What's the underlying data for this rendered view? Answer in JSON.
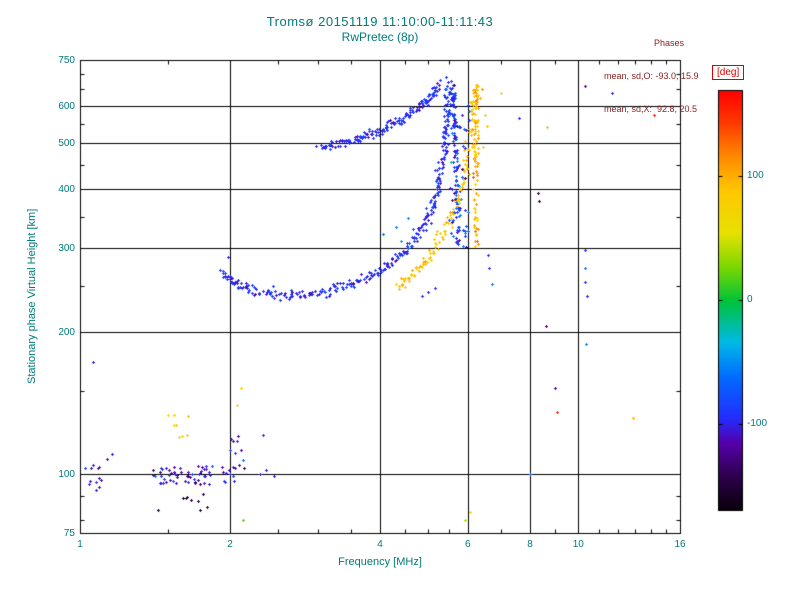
{
  "colors": {
    "axis_text": "#007a7a",
    "stats_text": "#8b2222",
    "colorbar_label": "#dd0000",
    "grid": "#000000",
    "background": "#ffffff"
  },
  "chart_data": {
    "type": "scatter",
    "title": "Tromsø 20151119 11:10:00-11:11:43",
    "subtitle": "RwPretec (8p)",
    "xlabel": "Frequency [MHz]",
    "ylabel": "Stationary phase Virtual Height [km]",
    "xscale": "log",
    "yscale": "log",
    "xlim": [
      1,
      16
    ],
    "ylim": [
      75,
      750
    ],
    "xticks": [
      1,
      2,
      4,
      6,
      8,
      10,
      16
    ],
    "yticks": [
      75,
      100,
      200,
      300,
      400,
      500,
      600,
      750
    ],
    "x_minor_ticks": [
      1.5,
      2.5,
      3,
      3.5,
      4.5,
      5,
      5.5,
      7,
      9,
      11,
      12,
      13,
      14,
      15
    ],
    "y_minor_ticks": [
      80,
      90,
      150,
      250,
      350,
      450,
      550,
      650,
      700
    ],
    "grid": true,
    "stats": {
      "header": "Phases",
      "o_line": "mean, sd,O: -93.0, 15.9",
      "x_line": "mean, sd,X:  92.8, 20.5"
    },
    "colorbar": {
      "label": "[deg]",
      "ticks": [
        100,
        0,
        -100
      ],
      "vmin": -170,
      "vmax": 170
    },
    "colormap_stops": [
      [
        0.0,
        10,
        0,
        10
      ],
      [
        0.08,
        45,
        0,
        75
      ],
      [
        0.16,
        85,
        0,
        170
      ],
      [
        0.22,
        35,
        45,
        255
      ],
      [
        0.32,
        0,
        110,
        255
      ],
      [
        0.4,
        0,
        185,
        230
      ],
      [
        0.5,
        0,
        195,
        55
      ],
      [
        0.58,
        125,
        215,
        0
      ],
      [
        0.66,
        230,
        225,
        0
      ],
      [
        0.76,
        255,
        200,
        0
      ],
      [
        0.84,
        255,
        140,
        0
      ],
      [
        0.92,
        255,
        60,
        0
      ],
      [
        1.0,
        255,
        0,
        0
      ]
    ],
    "traces": [
      {
        "name": "o-mode-lower",
        "phase": -95,
        "phase_sd": 9,
        "n": 320,
        "jitter_logf": 0.004,
        "jitter_logh": 0.005,
        "path": [
          [
            1.93,
            268
          ],
          [
            2.0,
            256
          ],
          [
            2.1,
            249
          ],
          [
            2.25,
            244
          ],
          [
            2.45,
            240
          ],
          [
            2.7,
            239
          ],
          [
            2.95,
            241
          ],
          [
            3.2,
            245
          ],
          [
            3.45,
            251
          ],
          [
            3.7,
            258
          ],
          [
            3.95,
            267
          ],
          [
            4.2,
            279
          ],
          [
            4.45,
            294
          ],
          [
            4.7,
            314
          ],
          [
            4.9,
            337
          ],
          [
            5.05,
            360
          ],
          [
            5.18,
            390
          ],
          [
            5.28,
            425
          ],
          [
            5.36,
            468
          ],
          [
            5.41,
            515
          ],
          [
            5.44,
            562
          ],
          [
            5.46,
            612
          ],
          [
            5.47,
            685
          ]
        ]
      },
      {
        "name": "o-mode-upper",
        "phase": -95,
        "phase_sd": 9,
        "n": 160,
        "jitter_logf": 0.004,
        "jitter_logh": 0.005,
        "path": [
          [
            3.05,
            492
          ],
          [
            3.3,
            500
          ],
          [
            3.6,
            511
          ],
          [
            3.9,
            527
          ],
          [
            4.2,
            547
          ],
          [
            4.5,
            571
          ],
          [
            4.8,
            600
          ],
          [
            5.05,
            630
          ],
          [
            5.25,
            662
          ]
        ]
      },
      {
        "name": "o-mode-second-strand",
        "phase": -92,
        "phase_sd": 15,
        "n": 90,
        "jitter_logf": 0.003,
        "jitter_logh": 0.01,
        "path": [
          [
            5.74,
            305
          ],
          [
            5.71,
            355
          ],
          [
            5.69,
            415
          ],
          [
            5.67,
            485
          ],
          [
            5.64,
            555
          ],
          [
            5.61,
            620
          ],
          [
            5.58,
            658
          ]
        ]
      },
      {
        "name": "x-mode-rise",
        "phase": 88,
        "phase_sd": 12,
        "n": 130,
        "jitter_logf": 0.004,
        "jitter_logh": 0.006,
        "path": [
          [
            4.35,
            250
          ],
          [
            4.6,
            262
          ],
          [
            4.85,
            277
          ],
          [
            5.1,
            297
          ],
          [
            5.35,
            324
          ],
          [
            5.6,
            360
          ],
          [
            5.85,
            408
          ],
          [
            6.0,
            468
          ],
          [
            6.1,
            540
          ],
          [
            6.17,
            608
          ],
          [
            6.2,
            652
          ]
        ]
      }
    ],
    "clusters": [
      {
        "name": "x-mode-vertical-band",
        "f": [
          6.15,
          6.3
        ],
        "h": [
          300,
          665
        ],
        "n": 85,
        "phase": 95,
        "phase_sd": 16
      },
      {
        "name": "o-mode-band-scatter",
        "f": [
          5.5,
          6.05
        ],
        "h": [
          300,
          660
        ],
        "n": 55,
        "phase": -88,
        "phase_sd": 25
      },
      {
        "name": "e-layer-main",
        "f": [
          1.4,
          2.05
        ],
        "h": [
          95,
          104
        ],
        "n": 65,
        "phase": -105,
        "phase_sd": 18
      },
      {
        "name": "e-layer-left",
        "f": [
          1.0,
          1.16
        ],
        "h": [
          92,
          112
        ],
        "n": 12,
        "phase": -108,
        "phase_sd": 15
      },
      {
        "name": "e-layer-dark",
        "f": [
          1.4,
          1.8
        ],
        "h": [
          83,
          91
        ],
        "n": 9,
        "phase": -150,
        "phase_sd": 12
      },
      {
        "name": "e-layer-yellow",
        "f": [
          1.5,
          1.66
        ],
        "h": [
          117,
          136
        ],
        "n": 8,
        "phase": 82,
        "phase_sd": 10
      },
      {
        "name": "e-layer-2mhz",
        "f": [
          2.0,
          2.15
        ],
        "h": [
          98,
          125
        ],
        "n": 10,
        "phase": -100,
        "phase_sd": 15
      }
    ],
    "points": [
      [
        1.06,
        172,
        -100
      ],
      [
        1.05,
        103,
        -112
      ],
      [
        1.1,
        97,
        -118
      ],
      [
        1.98,
        287,
        -102
      ],
      [
        2.3,
        100,
        -100
      ],
      [
        2.36,
        102,
        -104
      ],
      [
        2.33,
        121,
        -96
      ],
      [
        2.45,
        99,
        -100
      ],
      [
        2.1,
        152,
        75
      ],
      [
        2.07,
        140,
        68
      ],
      [
        2.12,
        80,
        20
      ],
      [
        4.05,
        322,
        -62
      ],
      [
        4.3,
        332,
        -55
      ],
      [
        4.4,
        310,
        -45
      ],
      [
        4.55,
        348,
        -50
      ],
      [
        4.85,
        238,
        -95
      ],
      [
        5.0,
        243,
        -100
      ],
      [
        5.15,
        247,
        -98
      ],
      [
        5.92,
        80,
        35
      ],
      [
        6.05,
        83,
        55
      ],
      [
        6.35,
        622,
        100
      ],
      [
        6.42,
        652,
        112
      ],
      [
        6.45,
        490,
        78
      ],
      [
        6.5,
        575,
        85
      ],
      [
        6.55,
        545,
        92
      ],
      [
        6.6,
        290,
        -95
      ],
      [
        6.62,
        272,
        -90
      ],
      [
        6.7,
        252,
        -58
      ],
      [
        7.0,
        638,
        78
      ],
      [
        7.6,
        565,
        -95
      ],
      [
        8.0,
        100,
        -65
      ],
      [
        8.3,
        392,
        -142
      ],
      [
        8.35,
        378,
        -148
      ],
      [
        8.6,
        205,
        -132
      ],
      [
        8.65,
        540,
        95
      ],
      [
        9.0,
        152,
        -120
      ],
      [
        9.05,
        135,
        152
      ],
      [
        10.3,
        660,
        -120
      ],
      [
        10.3,
        298,
        -95
      ],
      [
        10.33,
        272,
        -58
      ],
      [
        10.3,
        254,
        -95
      ],
      [
        10.42,
        238,
        -100
      ],
      [
        10.35,
        188,
        -52
      ],
      [
        11.7,
        640,
        -100
      ],
      [
        12.9,
        131,
        95
      ],
      [
        14.2,
        575,
        160
      ]
    ]
  }
}
